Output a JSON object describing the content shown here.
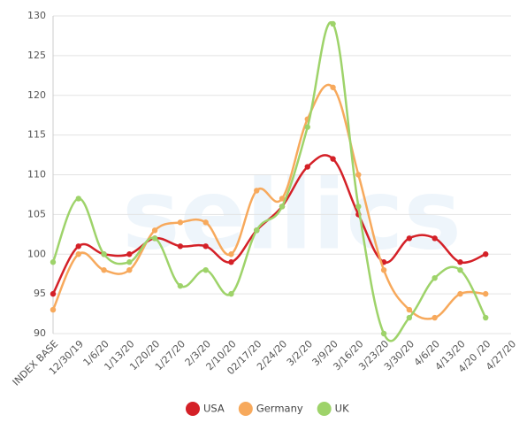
{
  "chart_data": {
    "type": "line",
    "watermark": "sellics",
    "categories": [
      "INDEX BASE",
      "12/30/19",
      "1/6/20",
      "1/13/20",
      "1/20/20",
      "1/27/20",
      "2/3/20",
      "2/10/20",
      "02/17/20",
      "2/24/20",
      "3/2/20",
      "3/9/20",
      "3/16/20",
      "3/23/20",
      "3/30/20",
      "4/6/20",
      "4/13/20",
      "4/20 /20",
      "4/27/20"
    ],
    "series": [
      {
        "name": "USA",
        "color": "#d42027",
        "values": [
          95,
          101,
          100,
          100,
          102,
          101,
          101,
          99,
          103,
          106,
          111,
          112,
          105,
          99,
          102,
          102,
          99,
          100,
          null
        ]
      },
      {
        "name": "Germany",
        "color": "#f7a95c",
        "values": [
          93,
          100,
          98,
          98,
          103,
          104,
          104,
          100,
          108,
          107,
          117,
          121,
          110,
          98,
          93,
          92,
          95,
          95,
          null
        ]
      },
      {
        "name": "UK",
        "color": "#9ed36a",
        "values": [
          99,
          107,
          100,
          99,
          102,
          96,
          98,
          95,
          103,
          106,
          116,
          129,
          106,
          90,
          92,
          97,
          98,
          92,
          null
        ]
      }
    ],
    "ylim": [
      90,
      130
    ],
    "yticks": [
      90,
      95,
      100,
      105,
      110,
      115,
      120,
      125,
      130
    ],
    "grid": true,
    "legend": "bottom"
  }
}
